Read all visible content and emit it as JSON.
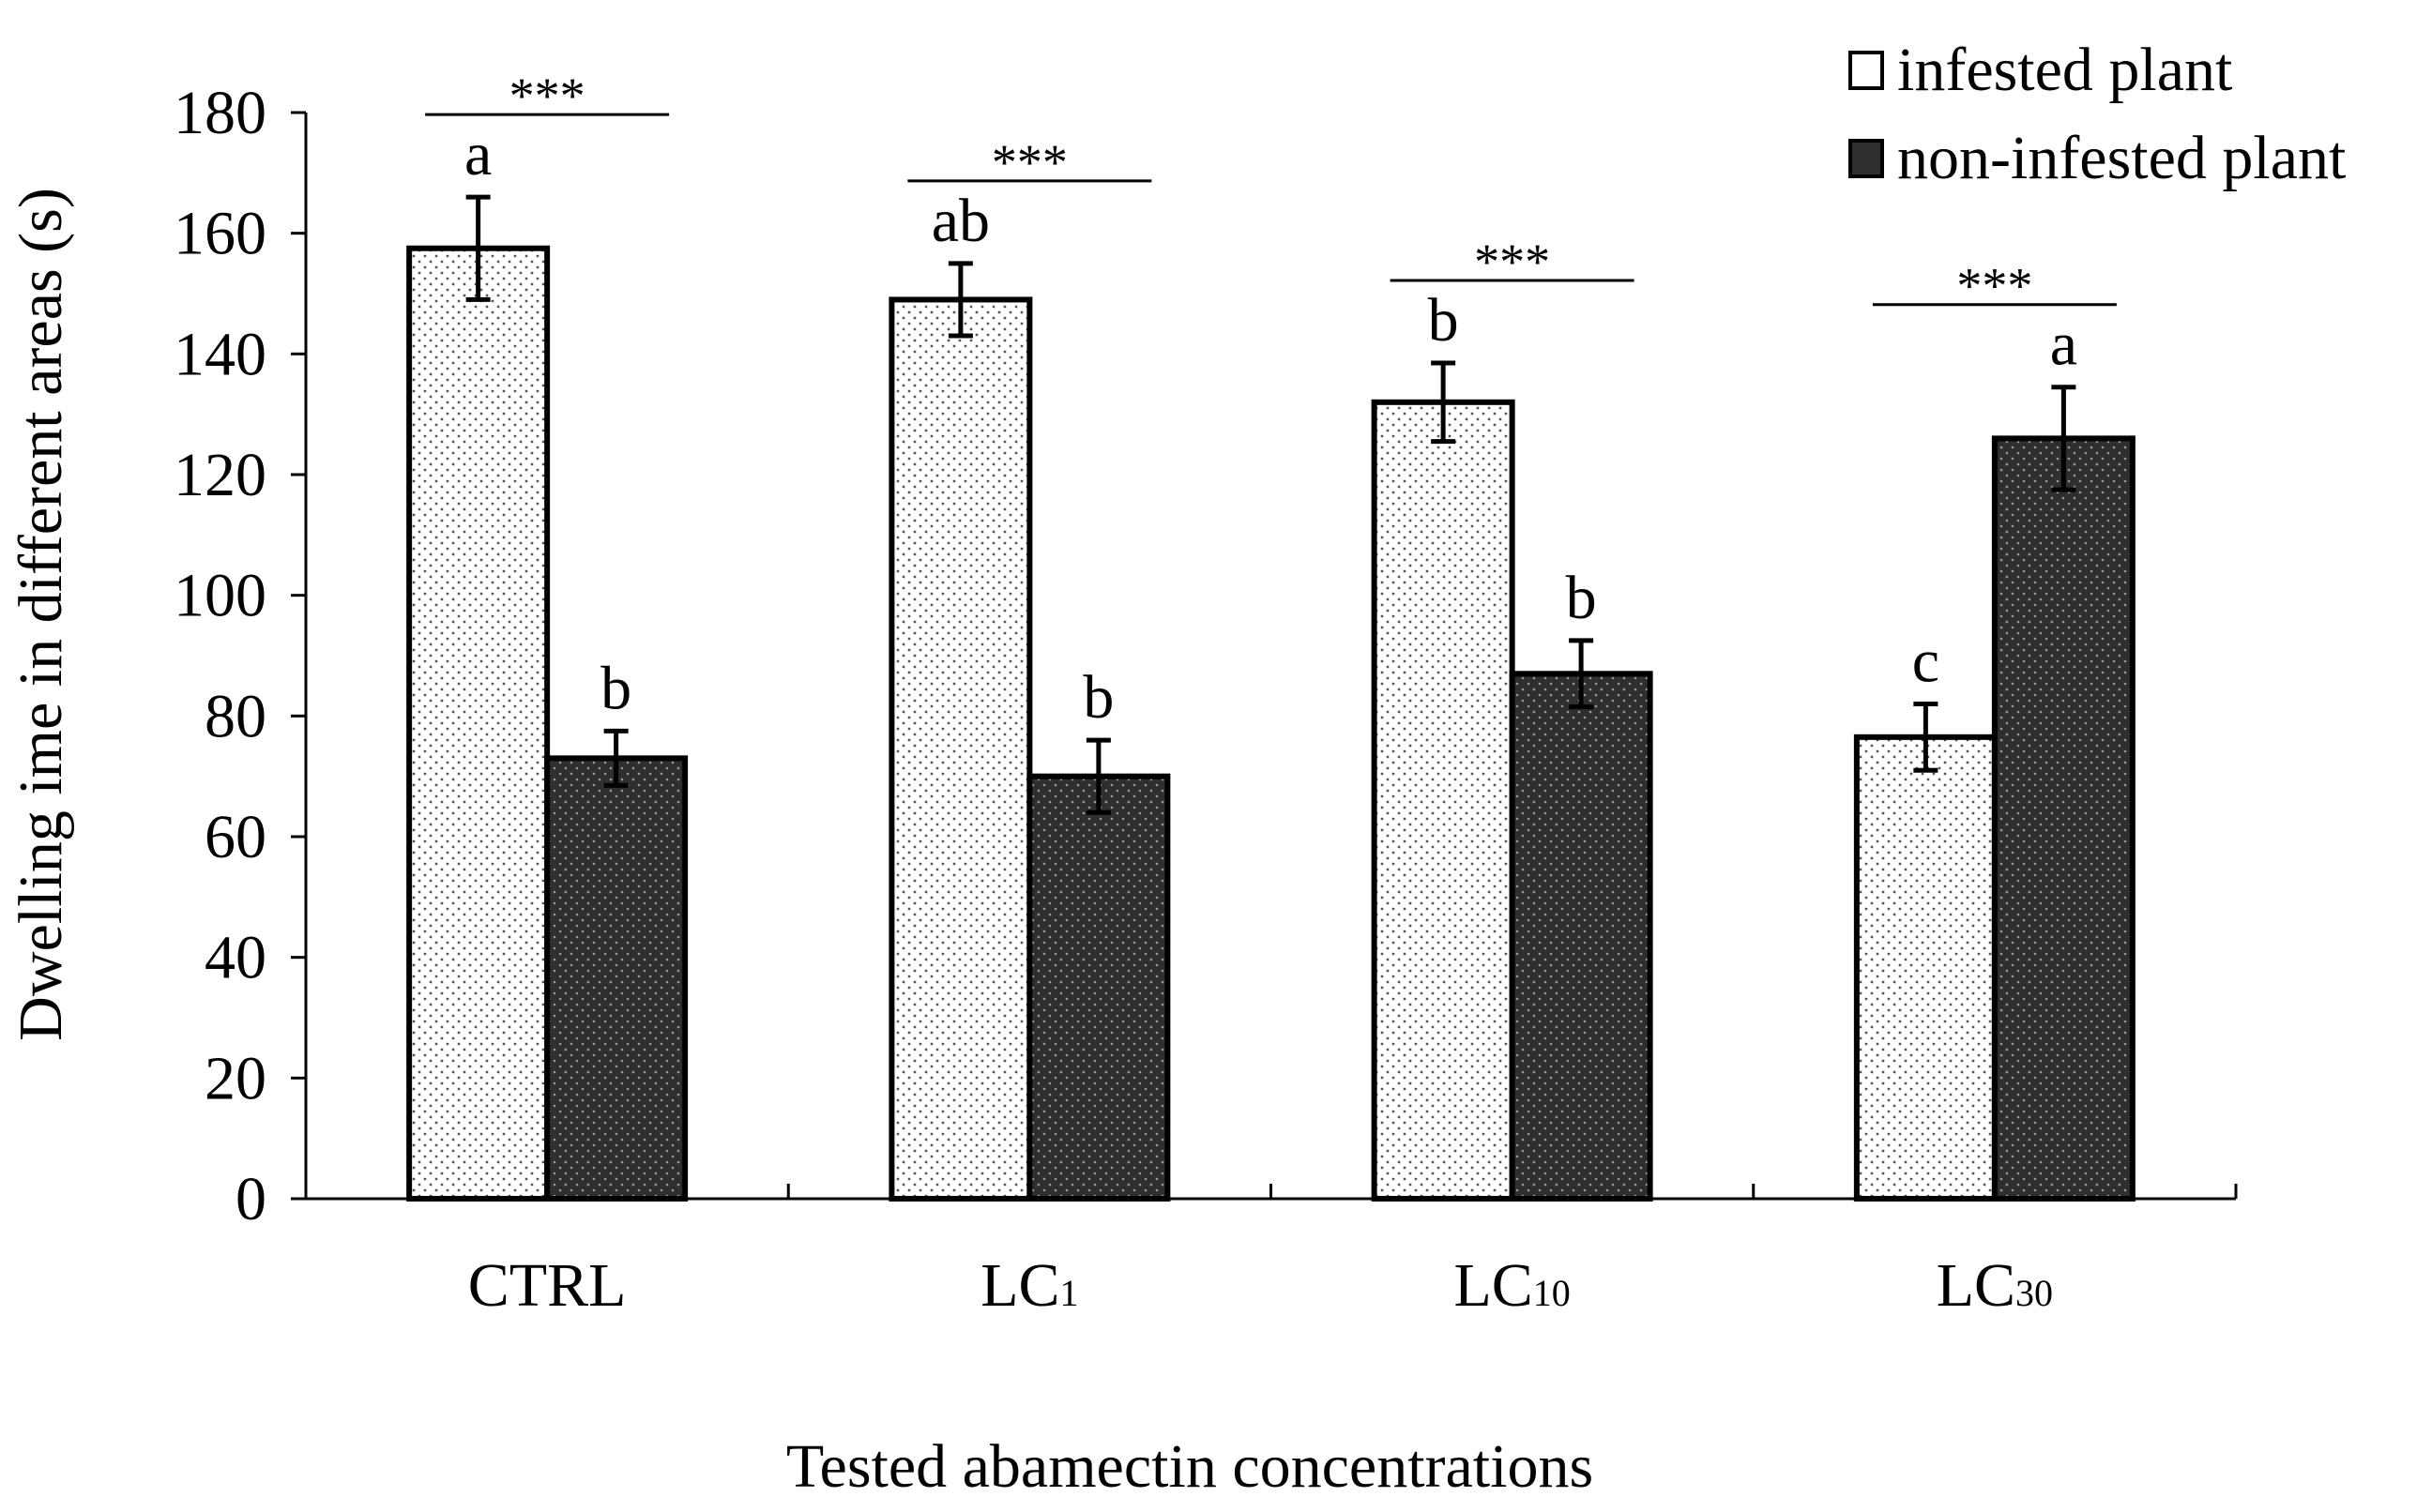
{
  "chart_data": {
    "type": "bar",
    "xlabel": "Tested abamectin concentrations",
    "ylabel": "Dwelling ime in different areas (s)",
    "ylim": [
      0,
      180
    ],
    "yticks": [
      0,
      20,
      40,
      60,
      80,
      100,
      120,
      140,
      160,
      180
    ],
    "grid": false,
    "legend_position": "top-right",
    "categories": [
      {
        "base": "CTRL",
        "sub": ""
      },
      {
        "base": "LC",
        "sub": "1"
      },
      {
        "base": "LC",
        "sub": "10"
      },
      {
        "base": "LC",
        "sub": "30"
      }
    ],
    "series": [
      {
        "name": "infested plant",
        "pattern": "dots-light",
        "fill": "#ffffff",
        "values": [
          157.5,
          149,
          132,
          76.5
        ],
        "errors": [
          8.5,
          6,
          6.5,
          5.5
        ],
        "letters": [
          "a",
          "ab",
          "b",
          "c"
        ]
      },
      {
        "name": "non-infested plant",
        "pattern": "dots-dark",
        "fill": "#2f2f2f",
        "values": [
          73,
          70,
          87,
          126
        ],
        "errors": [
          4.5,
          6,
          5.5,
          8.5
        ],
        "letters": [
          "b",
          "b",
          "b",
          "a"
        ]
      }
    ],
    "significance": [
      "***",
      "***",
      "***",
      "***"
    ]
  }
}
